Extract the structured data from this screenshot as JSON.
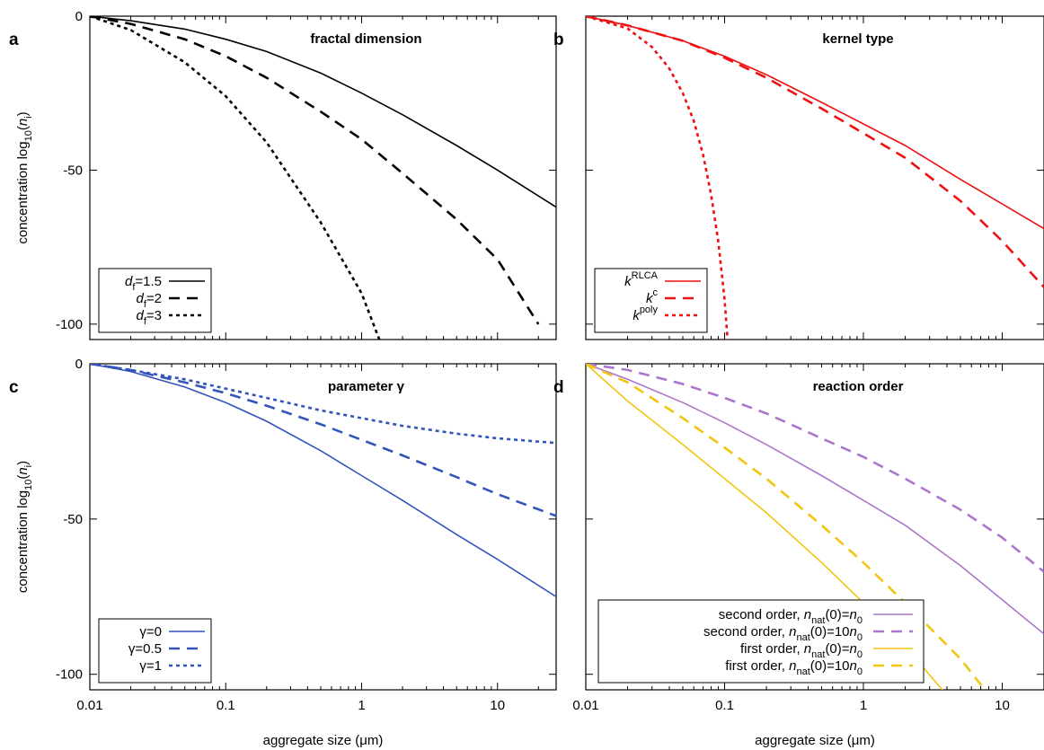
{
  "figure": {
    "ylabel": "concentration log10(ni)",
    "xlabel": "aggregate size (μm)"
  },
  "chart_data": [
    {
      "type": "line",
      "panel": "a",
      "title": "fractal dimension",
      "xlim": [
        0.01,
        27
      ],
      "ylim": [
        -105,
        0
      ],
      "xscale": "log",
      "xticks": [
        0.01,
        0.1,
        1,
        10
      ],
      "yticks": [
        0,
        -50,
        -100
      ],
      "legend_position": "bottom-left",
      "series": [
        {
          "name": "df=1.5",
          "color": "#000000",
          "dash": "solid",
          "x": [
            0.01,
            0.02,
            0.05,
            0.1,
            0.2,
            0.5,
            1,
            2,
            5,
            10,
            27
          ],
          "y": [
            0,
            -1.5,
            -4.2,
            -7.5,
            -11.5,
            -18.5,
            -25,
            -32,
            -42,
            -50,
            -62
          ]
        },
        {
          "name": "df=2",
          "color": "#000000",
          "dash": "dashed",
          "x": [
            0.01,
            0.02,
            0.05,
            0.1,
            0.2,
            0.5,
            1,
            2,
            5,
            10,
            20
          ],
          "y": [
            0,
            -2.5,
            -7.5,
            -13,
            -20,
            -31,
            -40,
            -51,
            -66,
            -79,
            -100
          ]
        },
        {
          "name": "df=3",
          "color": "#000000",
          "dash": "dotted",
          "x": [
            0.01,
            0.02,
            0.05,
            0.1,
            0.2,
            0.5,
            1,
            1.35
          ],
          "y": [
            0,
            -4.5,
            -15,
            -26,
            -41,
            -67,
            -90,
            -105
          ]
        }
      ]
    },
    {
      "type": "line",
      "panel": "b",
      "title": "kernel type",
      "xlim": [
        0.01,
        20
      ],
      "ylim": [
        -105,
        0
      ],
      "xscale": "log",
      "xticks": [
        0.01,
        0.1,
        1,
        10
      ],
      "yticks": [
        0,
        -50,
        -100
      ],
      "legend_position": "bottom-left",
      "series": [
        {
          "name": "kRLCA",
          "color": "#ee1111",
          "dash": "solid",
          "x": [
            0.01,
            0.02,
            0.05,
            0.1,
            0.2,
            0.5,
            1,
            2,
            5,
            10,
            20
          ],
          "y": [
            0,
            -3,
            -8,
            -13,
            -19,
            -28,
            -35,
            -42,
            -53,
            -61,
            -69
          ]
        },
        {
          "name": "kc",
          "color": "#ee1111",
          "dash": "dashed",
          "x": [
            0.01,
            0.02,
            0.05,
            0.1,
            0.2,
            0.5,
            1,
            2,
            5,
            10,
            20
          ],
          "y": [
            0,
            -3,
            -8,
            -13.5,
            -20,
            -30,
            -38,
            -46,
            -60,
            -73,
            -88
          ]
        },
        {
          "name": "kpoly",
          "color": "#ee1111",
          "dash": "dotted",
          "x": [
            0.01,
            0.02,
            0.03,
            0.04,
            0.05,
            0.06,
            0.07,
            0.08,
            0.09,
            0.1,
            0.105
          ],
          "y": [
            0,
            -4,
            -10,
            -17,
            -25,
            -34,
            -45,
            -58,
            -73,
            -92,
            -105
          ]
        }
      ]
    },
    {
      "type": "line",
      "panel": "c",
      "title": "parameter γ",
      "xlim": [
        0.01,
        27
      ],
      "ylim": [
        -105,
        0
      ],
      "xscale": "log",
      "xticks": [
        0.01,
        0.1,
        1,
        10
      ],
      "yticks": [
        0,
        -50,
        -100
      ],
      "legend_position": "bottom-left",
      "series": [
        {
          "name": "γ=0",
          "color": "#3355bb",
          "dash": "solid",
          "x": [
            0.01,
            0.02,
            0.05,
            0.1,
            0.2,
            0.5,
            1,
            2,
            5,
            10,
            27
          ],
          "y": [
            0,
            -2.5,
            -7.5,
            -12.5,
            -18.5,
            -28,
            -36,
            -44,
            -55,
            -63,
            -75
          ]
        },
        {
          "name": "γ=0.5",
          "color": "#3355bb",
          "dash": "dashed",
          "x": [
            0.01,
            0.02,
            0.05,
            0.1,
            0.2,
            0.5,
            1,
            2,
            5,
            10,
            27
          ],
          "y": [
            0,
            -2,
            -6,
            -9.5,
            -13.5,
            -19.5,
            -24.5,
            -29.5,
            -36.5,
            -42,
            -49
          ]
        },
        {
          "name": "γ=1",
          "color": "#3355bb",
          "dash": "dotted",
          "x": [
            0.01,
            0.02,
            0.05,
            0.1,
            0.2,
            0.5,
            1,
            2,
            5,
            10,
            27
          ],
          "y": [
            0,
            -2,
            -5,
            -8,
            -11,
            -15,
            -17.5,
            -20,
            -22.5,
            -24,
            -25.5
          ]
        }
      ]
    },
    {
      "type": "line",
      "panel": "d",
      "title": "reaction order",
      "xlim": [
        0.01,
        20
      ],
      "ylim": [
        -105,
        0
      ],
      "xscale": "log",
      "xticks": [
        0.01,
        0.1,
        1,
        10
      ],
      "yticks": [
        0,
        -50,
        -100
      ],
      "legend_position": "bottom-right",
      "series": [
        {
          "name": "second order, nnat(0)=n0",
          "color": "#aa77cc",
          "dash": "solid",
          "x": [
            0.01,
            0.02,
            0.05,
            0.1,
            0.2,
            0.5,
            1,
            2,
            5,
            10,
            20
          ],
          "y": [
            0,
            -5,
            -12.5,
            -19,
            -26,
            -36,
            -44,
            -52,
            -65,
            -76,
            -87
          ]
        },
        {
          "name": "second order, nnat(0)=10n0",
          "color": "#aa77cc",
          "dash": "dashed",
          "x": [
            0.01,
            0.02,
            0.05,
            0.1,
            0.2,
            0.5,
            1,
            2,
            5,
            10,
            20
          ],
          "y": [
            0,
            -2,
            -6.5,
            -11,
            -16,
            -24,
            -30,
            -37,
            -47,
            -56,
            -67
          ]
        },
        {
          "name": "first order, nnat(0)=n0",
          "color": "#f2c511",
          "dash": "solid",
          "x": [
            0.01,
            0.02,
            0.05,
            0.1,
            0.2,
            0.5,
            1,
            2,
            3.7
          ],
          "y": [
            0,
            -12,
            -26,
            -37,
            -48,
            -64,
            -77,
            -91,
            -105
          ]
        },
        {
          "name": "first order, nnat(0)=10n0",
          "color": "#f2c511",
          "dash": "dashed",
          "x": [
            0.01,
            0.02,
            0.05,
            0.1,
            0.2,
            0.5,
            1,
            2,
            5,
            7.5
          ],
          "y": [
            0,
            -6,
            -17.5,
            -27,
            -37,
            -52,
            -64,
            -77,
            -95,
            -105
          ]
        }
      ]
    }
  ]
}
